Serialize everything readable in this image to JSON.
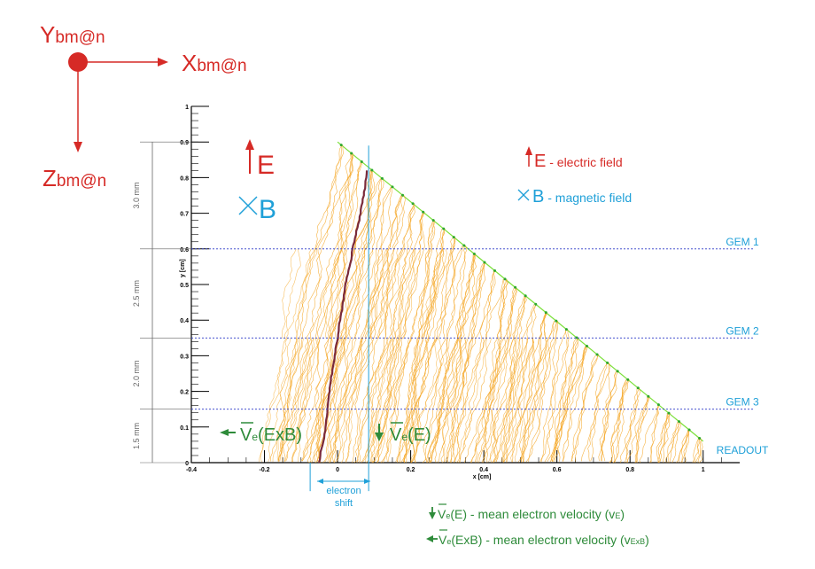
{
  "coords": {
    "y_label": "Y",
    "y_sub": "bm@n",
    "x_label": "X",
    "x_sub": "bm@n",
    "z_label": "Z",
    "z_sub": "bm@n"
  },
  "field_symbols": {
    "e": "E",
    "b": "B"
  },
  "legend": {
    "e_symbol": "E",
    "e_text": " - electric field",
    "b_symbol": "B",
    "b_text": " - magnetic field"
  },
  "layers": [
    {
      "label": "GEM 1",
      "y": 0.6
    },
    {
      "label": "GEM 2",
      "y": 0.35
    },
    {
      "label": "GEM 3",
      "y": 0.15
    },
    {
      "label": "READOUT",
      "y": 0.0
    }
  ],
  "gaps": [
    "3.0 mm",
    "2.5 mm",
    "2.0 mm",
    "1.5 mm"
  ],
  "axis": {
    "xlabel": "x [cm]",
    "ylabel": "y [cm]",
    "xticks": [
      "-0.4",
      "-0.2",
      "0",
      "0.2",
      "0.4",
      "0.6",
      "0.8",
      "1"
    ],
    "yticks": [
      "0",
      "0.1",
      "0.2",
      "0.3",
      "0.4",
      "0.5",
      "0.6",
      "0.7",
      "0.8",
      "0.9",
      "1"
    ]
  },
  "annotations": {
    "ve_exb": "V",
    "ve_exb_sub": "e",
    "ve_exb_tail": "(ExB)",
    "ve_e": "V",
    "ve_e_sub": "e",
    "ve_e_tail": "(E)",
    "shift_line1": "electron",
    "shift_line2": "shift"
  },
  "bottom_legend": {
    "line1": "V",
    "line1_sub": "e",
    "line1_mid": "(E) - mean electron velocity (v",
    "line1_vsub": "E",
    "line1_end": ")",
    "line2": "V",
    "line2_sub": "e",
    "line2_mid": "(ExB) - mean electron velocity (v",
    "line2_vsub": "ExB",
    "line2_end": ")"
  },
  "colors": {
    "red": "#d62a26",
    "blue": "#1fa0d8",
    "green": "#2e8b3a",
    "track": "#f5a623",
    "gem_line": "#2b39c8",
    "track_line": "#7be03a",
    "mean_track": "#7a2a3a"
  }
}
